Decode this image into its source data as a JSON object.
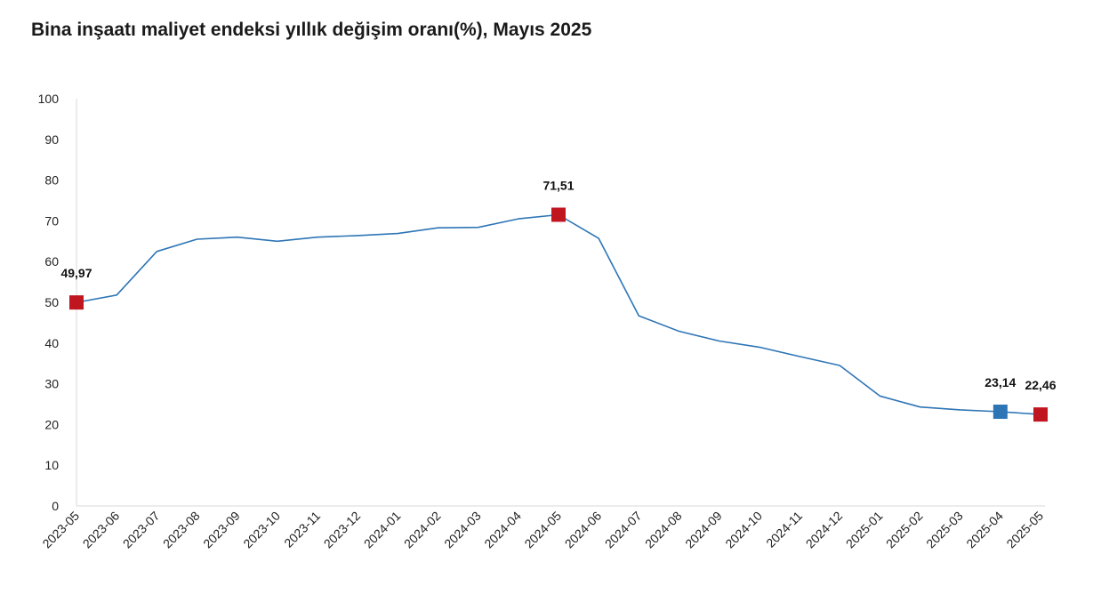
{
  "chart_data": {
    "type": "line",
    "title": "Bina inşaatı maliyet endeksi yıllık değişim oranı(%), Mayıs 2025",
    "xlabel": "",
    "ylabel": "",
    "ylim": [
      0,
      100
    ],
    "yticks": [
      0,
      10,
      20,
      30,
      40,
      50,
      60,
      70,
      80,
      90,
      100
    ],
    "grid": false,
    "categories": [
      "2023-05",
      "2023-06",
      "2023-07",
      "2023-08",
      "2023-09",
      "2023-10",
      "2023-11",
      "2023-12",
      "2024-01",
      "2024-02",
      "2024-03",
      "2024-04",
      "2024-05",
      "2024-06",
      "2024-07",
      "2024-08",
      "2024-09",
      "2024-10",
      "2024-11",
      "2024-12",
      "2025-01",
      "2025-02",
      "2025-03",
      "2025-04",
      "2025-05"
    ],
    "series": [
      {
        "values": [
          49.97,
          51.8,
          62.5,
          65.5,
          66.0,
          65.0,
          66.0,
          66.4,
          66.9,
          68.3,
          68.4,
          70.5,
          71.51,
          65.7,
          46.7,
          42.9,
          40.5,
          39.0,
          36.7,
          34.5,
          27.0,
          24.3,
          23.6,
          23.14,
          22.46
        ],
        "color": "#2e75b6"
      }
    ],
    "highlights": [
      {
        "index": 0,
        "label": "49,97",
        "color": "#c0161f"
      },
      {
        "index": 12,
        "label": "71,51",
        "color": "#c0161f"
      },
      {
        "index": 23,
        "label": "23,14",
        "color": "#2e75b6"
      },
      {
        "index": 24,
        "label": "22,46",
        "color": "#c0161f"
      }
    ]
  }
}
